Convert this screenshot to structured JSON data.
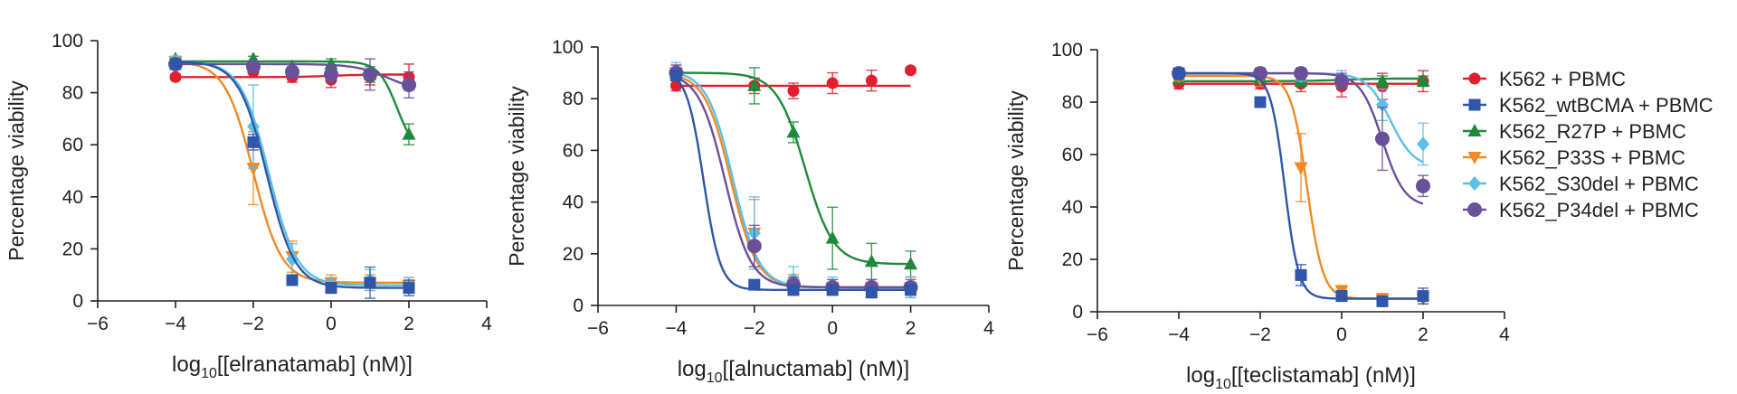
{
  "figure": {
    "legend": [
      {
        "label": "K562 + PBMC",
        "color": "#e0202e",
        "marker": "circle"
      },
      {
        "label": "K562_wtBCMA + PBMC",
        "color": "#2f56a8",
        "marker": "square"
      },
      {
        "label": "K562_R27P + PBMC",
        "color": "#1f8a3a",
        "marker": "triangle-up"
      },
      {
        "label": "K562_P33S + PBMC",
        "color": "#f08a24",
        "marker": "triangle-down"
      },
      {
        "label": "K562_S30del + PBMC",
        "color": "#5bbfe6",
        "marker": "diamond"
      },
      {
        "label": "K562_P34del + PBMC",
        "color": "#6a4f9a",
        "marker": "circle-large"
      }
    ]
  },
  "chart_data": [
    {
      "type": "scatter",
      "title": "",
      "xlabel_prefix": "log",
      "xlabel_sub": "10",
      "xlabel_suffix": "[[elranatamab] (nM)]",
      "ylabel": "Percentage viability",
      "xlim": [
        -6,
        4
      ],
      "ylim": [
        0,
        100
      ],
      "xticks": [
        -6,
        -4,
        -2,
        0,
        2,
        4
      ],
      "xtick_labels": [
        "−6",
        "−4",
        "−2",
        "0",
        "2",
        "4"
      ],
      "yticks": [
        0,
        20,
        40,
        60,
        80,
        100
      ],
      "ytick_labels": [
        "0",
        "20",
        "40",
        "60",
        "80",
        "100"
      ],
      "x": [
        -4,
        -2,
        -1,
        0,
        1,
        2
      ],
      "series": [
        {
          "name": "K562 + PBMC",
          "values": [
            86,
            88,
            86,
            85,
            86,
            86
          ],
          "err": [
            1,
            2,
            2,
            3,
            3,
            5
          ],
          "fit": {
            "top": 87,
            "bottom": 86,
            "ec50": 0,
            "hill": 1
          }
        },
        {
          "name": "K562_wtBCMA + PBMC",
          "values": [
            91,
            61,
            8,
            5,
            7,
            5
          ],
          "err": [
            1,
            3,
            2,
            2,
            6,
            3
          ],
          "fit": {
            "top": 92,
            "bottom": 5,
            "ec50": -1.65,
            "hill": -1.2
          }
        },
        {
          "name": "K562_R27P + PBMC",
          "values": [
            93,
            93,
            90,
            91,
            87,
            64
          ],
          "err": [
            1,
            1,
            1,
            2,
            3,
            4
          ],
          "fit": {
            "top": 92,
            "bottom": 56,
            "ec50": 1.7,
            "hill": -1.8
          }
        },
        {
          "name": "K562_P33S + PBMC",
          "values": [
            92,
            51,
            17,
            7,
            7,
            6
          ],
          "err": [
            2,
            14,
            6,
            3,
            3,
            3
          ],
          "fit": {
            "top": 92,
            "bottom": 7,
            "ec50": -2.0,
            "hill": -1.2
          }
        },
        {
          "name": "K562_S30del + PBMC",
          "values": [
            92,
            67,
            16,
            6,
            8,
            6
          ],
          "err": [
            2,
            16,
            6,
            3,
            4,
            3
          ],
          "fit": {
            "top": 92,
            "bottom": 6,
            "ec50": -1.6,
            "hill": -1.2
          }
        },
        {
          "name": "K562_P34del + PBMC",
          "values": [
            91,
            90,
            88,
            87,
            87,
            83
          ],
          "err": [
            2,
            2,
            2,
            3,
            6,
            5
          ],
          "fit": {
            "top": 91,
            "bottom": 80,
            "ec50": 1.5,
            "hill": -1
          }
        }
      ]
    },
    {
      "type": "scatter",
      "title": "",
      "xlabel_prefix": "log",
      "xlabel_sub": "10",
      "xlabel_suffix": "[[alnuctamab] (nM)]",
      "ylabel": "Percentage viability",
      "xlim": [
        -6,
        4
      ],
      "ylim": [
        0,
        100
      ],
      "xticks": [
        -6,
        -4,
        -2,
        0,
        2,
        4
      ],
      "xtick_labels": [
        "−6",
        "−4",
        "−2",
        "0",
        "2",
        "4"
      ],
      "yticks": [
        0,
        20,
        40,
        60,
        80,
        100
      ],
      "ytick_labels": [
        "0",
        "20",
        "40",
        "60",
        "80",
        "100"
      ],
      "x": [
        -4,
        -2,
        -1,
        0,
        1,
        2
      ],
      "series": [
        {
          "name": "K562 + PBMC",
          "values": [
            85,
            85,
            83,
            86,
            87,
            91
          ],
          "err": [
            2,
            3,
            3,
            4,
            4,
            1
          ],
          "fit": {
            "top": 85,
            "bottom": 85,
            "ec50": 0,
            "hill": 1
          }
        },
        {
          "name": "K562_wtBCMA + PBMC",
          "values": [
            89,
            8,
            6,
            6,
            5,
            6
          ],
          "err": [
            2,
            1,
            2,
            2,
            2,
            2
          ],
          "fit": {
            "top": 91,
            "bottom": 6,
            "ec50": -3.3,
            "hill": -2.0
          }
        },
        {
          "name": "K562_R27P + PBMC",
          "values": [
            90,
            85,
            67,
            26,
            17,
            16
          ],
          "err": [
            2,
            7,
            4,
            12,
            7,
            5
          ],
          "fit": {
            "top": 90,
            "bottom": 16,
            "ec50": -0.7,
            "hill": -1.2
          }
        },
        {
          "name": "K562_P33S + PBMC",
          "values": [
            90,
            28,
            8,
            7,
            7,
            7
          ],
          "err": [
            3,
            13,
            4,
            3,
            3,
            4
          ],
          "fit": {
            "top": 90,
            "bottom": 7,
            "ec50": -2.6,
            "hill": -1.3
          }
        },
        {
          "name": "K562_S30del + PBMC",
          "values": [
            91,
            28,
            10,
            8,
            7,
            7
          ],
          "err": [
            3,
            14,
            5,
            3,
            3,
            4
          ],
          "fit": {
            "top": 91,
            "bottom": 7,
            "ec50": -2.55,
            "hill": -1.3
          }
        },
        {
          "name": "K562_P34del + PBMC",
          "values": [
            90,
            23,
            8,
            7,
            7,
            7
          ],
          "err": [
            3,
            8,
            3,
            3,
            3,
            3
          ],
          "fit": {
            "top": 90,
            "bottom": 7,
            "ec50": -2.75,
            "hill": -1.3
          }
        }
      ]
    },
    {
      "type": "scatter",
      "title": "",
      "xlabel_prefix": "log",
      "xlabel_sub": "10",
      "xlabel_suffix": "[[teclistamab] (nM)]",
      "ylabel": "Percentage viability",
      "xlim": [
        -6,
        4
      ],
      "ylim": [
        0,
        100
      ],
      "xticks": [
        -6,
        -4,
        -2,
        0,
        2,
        4
      ],
      "xtick_labels": [
        "−6",
        "−4",
        "−2",
        "0",
        "2",
        "4"
      ],
      "yticks": [
        0,
        20,
        40,
        60,
        80,
        100
      ],
      "ytick_labels": [
        "0",
        "20",
        "40",
        "60",
        "80",
        "100"
      ],
      "x": [
        -4,
        -2,
        -1,
        0,
        1,
        2
      ],
      "series": [
        {
          "name": "K562 + PBMC",
          "values": [
            87,
            87,
            87,
            86,
            86,
            88
          ],
          "err": [
            2,
            2,
            3,
            4,
            5,
            4
          ],
          "fit": {
            "top": 87,
            "bottom": 87,
            "ec50": 0,
            "hill": 1
          }
        },
        {
          "name": "K562_wtBCMA + PBMC",
          "values": [
            91,
            80,
            14,
            6,
            4,
            6
          ],
          "err": [
            2,
            2,
            4,
            2,
            1,
            3
          ],
          "fit": {
            "top": 91,
            "bottom": 5,
            "ec50": -1.4,
            "hill": -2.5
          }
        },
        {
          "name": "K562_R27P + PBMC",
          "values": [
            89,
            89,
            88,
            88,
            88,
            88
          ],
          "err": [
            2,
            2,
            2,
            2,
            2,
            2
          ],
          "fit": {
            "top": 89,
            "bottom": 88,
            "ec50": 0,
            "hill": 1
          }
        },
        {
          "name": "K562_P33S + PBMC",
          "values": [
            90,
            89,
            55,
            8,
            5,
            5
          ],
          "err": [
            2,
            3,
            13,
            2,
            2,
            2
          ],
          "fit": {
            "top": 90,
            "bottom": 5,
            "ec50": -0.85,
            "hill": -2.2
          }
        },
        {
          "name": "K562_S30del + PBMC",
          "values": [
            91,
            91,
            90,
            89,
            79,
            64
          ],
          "err": [
            2,
            2,
            2,
            3,
            6,
            8
          ],
          "fit": {
            "top": 91,
            "bottom": 55,
            "ec50": 1.2,
            "hill": -1.5
          }
        },
        {
          "name": "K562_P34del + PBMC",
          "values": [
            91,
            91,
            91,
            88,
            66,
            48
          ],
          "err": [
            2,
            2,
            2,
            3,
            12,
            4
          ],
          "fit": {
            "top": 91,
            "bottom": 40,
            "ec50": 1.0,
            "hill": -1.6
          }
        }
      ]
    }
  ]
}
